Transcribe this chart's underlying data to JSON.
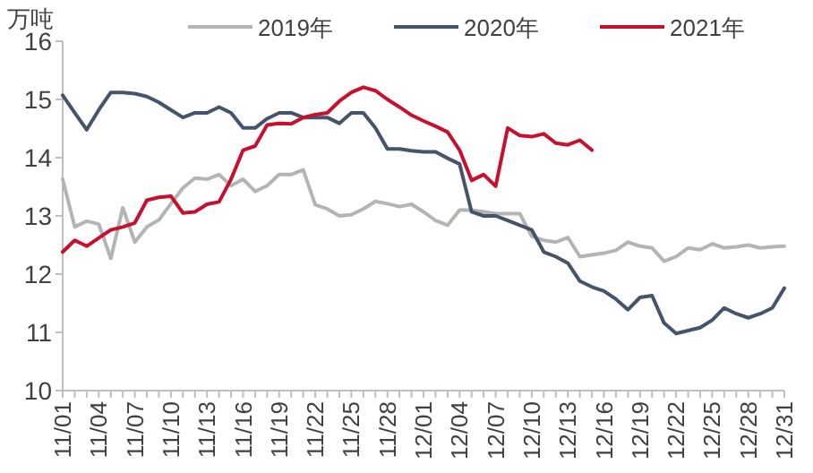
{
  "chart_data": {
    "type": "line",
    "ylabel": "万吨",
    "categories": [
      "11/01",
      null,
      null,
      "11/04",
      null,
      null,
      "11/07",
      null,
      null,
      "11/10",
      null,
      null,
      "11/13",
      null,
      null,
      "11/16",
      null,
      null,
      "11/19",
      null,
      null,
      "11/22",
      null,
      null,
      "11/25",
      null,
      null,
      "11/28",
      null,
      null,
      "12/01",
      null,
      null,
      "12/04",
      null,
      null,
      "12/07",
      null,
      null,
      "12/10",
      null,
      null,
      "12/13",
      null,
      null,
      "12/16",
      null,
      null,
      "12/19",
      null,
      null,
      "12/22",
      null,
      null,
      "12/25",
      null,
      null,
      "12/28",
      null,
      null,
      "12/31"
    ],
    "series": [
      {
        "name": "2019年",
        "color": "#b4b4b4",
        "values": [
          13.63,
          12.81,
          12.91,
          12.86,
          12.27,
          13.14,
          12.55,
          12.81,
          12.93,
          13.21,
          13.48,
          13.65,
          13.63,
          13.71,
          13.52,
          13.63,
          13.42,
          13.52,
          13.71,
          13.71,
          13.79,
          13.19,
          13.12,
          13.0,
          13.02,
          13.12,
          13.25,
          13.21,
          13.16,
          13.2,
          13.07,
          12.92,
          12.84,
          13.1,
          13.1,
          13.07,
          13.04,
          13.04,
          13.04,
          12.65,
          12.58,
          12.55,
          12.63,
          12.3,
          12.33,
          12.36,
          12.41,
          12.55,
          12.48,
          12.45,
          12.22,
          12.3,
          12.45,
          12.42,
          12.52,
          12.45,
          12.47,
          12.5,
          12.45,
          12.47,
          12.48
        ]
      },
      {
        "name": "2020年",
        "color": "#44546a",
        "values": [
          15.07,
          14.77,
          14.48,
          14.82,
          15.12,
          15.12,
          15.1,
          15.05,
          14.95,
          14.82,
          14.69,
          14.77,
          14.77,
          14.87,
          14.77,
          14.51,
          14.51,
          14.67,
          14.77,
          14.77,
          14.69,
          14.69,
          14.69,
          14.59,
          14.77,
          14.77,
          14.51,
          14.15,
          14.15,
          14.12,
          14.1,
          14.1,
          13.99,
          13.89,
          13.07,
          13.0,
          13.0,
          12.92,
          12.84,
          12.76,
          12.38,
          12.3,
          12.19,
          11.88,
          11.78,
          11.71,
          11.57,
          11.39,
          11.6,
          11.63,
          11.16,
          10.98,
          11.03,
          11.08,
          11.21,
          11.42,
          11.32,
          11.25,
          11.32,
          11.42,
          11.76
        ]
      },
      {
        "name": "2021年",
        "color": "#c8102e",
        "values": [
          12.38,
          12.58,
          12.48,
          12.62,
          12.76,
          12.81,
          12.88,
          13.27,
          13.32,
          13.34,
          13.05,
          13.07,
          13.2,
          13.24,
          13.63,
          14.13,
          14.2,
          14.56,
          14.59,
          14.58,
          14.69,
          14.74,
          14.77,
          14.97,
          15.12,
          15.21,
          15.15,
          15.0,
          14.87,
          14.73,
          14.63,
          14.54,
          14.44,
          14.13,
          13.61,
          13.71,
          13.51,
          14.51,
          14.38,
          14.36,
          14.41,
          14.25,
          14.22,
          14.3,
          14.13,
          null,
          null,
          null,
          null,
          null,
          null,
          null,
          null,
          null,
          null,
          null,
          null,
          null,
          null,
          null,
          null
        ]
      }
    ],
    "ylim": [
      10,
      16
    ],
    "yticks": [
      10,
      11,
      12,
      13,
      14,
      15,
      16
    ],
    "legend": "top",
    "grid": false
  }
}
